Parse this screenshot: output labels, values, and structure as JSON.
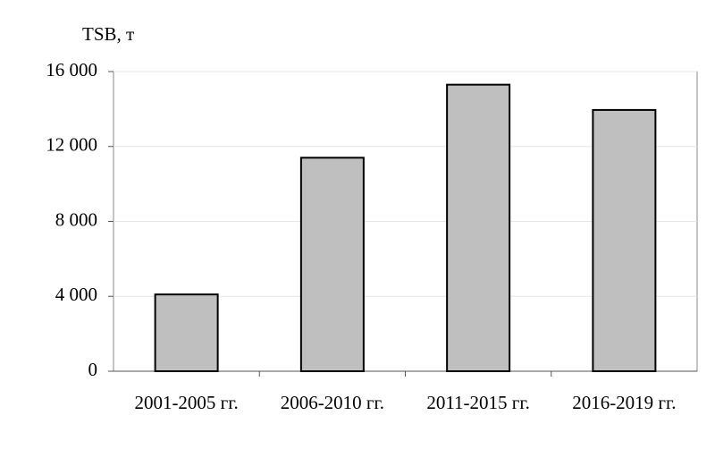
{
  "chart_data": {
    "type": "bar",
    "y_label": "TSB, т",
    "categories": [
      "2001-2005 гг.",
      "2006-2010 гг.",
      "2011-2015 гг.",
      "2016-2019 гг."
    ],
    "values": [
      4100,
      11400,
      15300,
      13950
    ],
    "color": "#bfbfbf",
    "ylim": [
      0,
      16000
    ],
    "yticks": [
      0,
      {
        "value": 4000,
        "label": "4 000"
      },
      {
        "value": 8000,
        "label": "8 000"
      },
      {
        "value": 12000,
        "label": "12 000"
      },
      {
        "value": 16000,
        "label": "16 000"
      }
    ],
    "grid": true
  }
}
